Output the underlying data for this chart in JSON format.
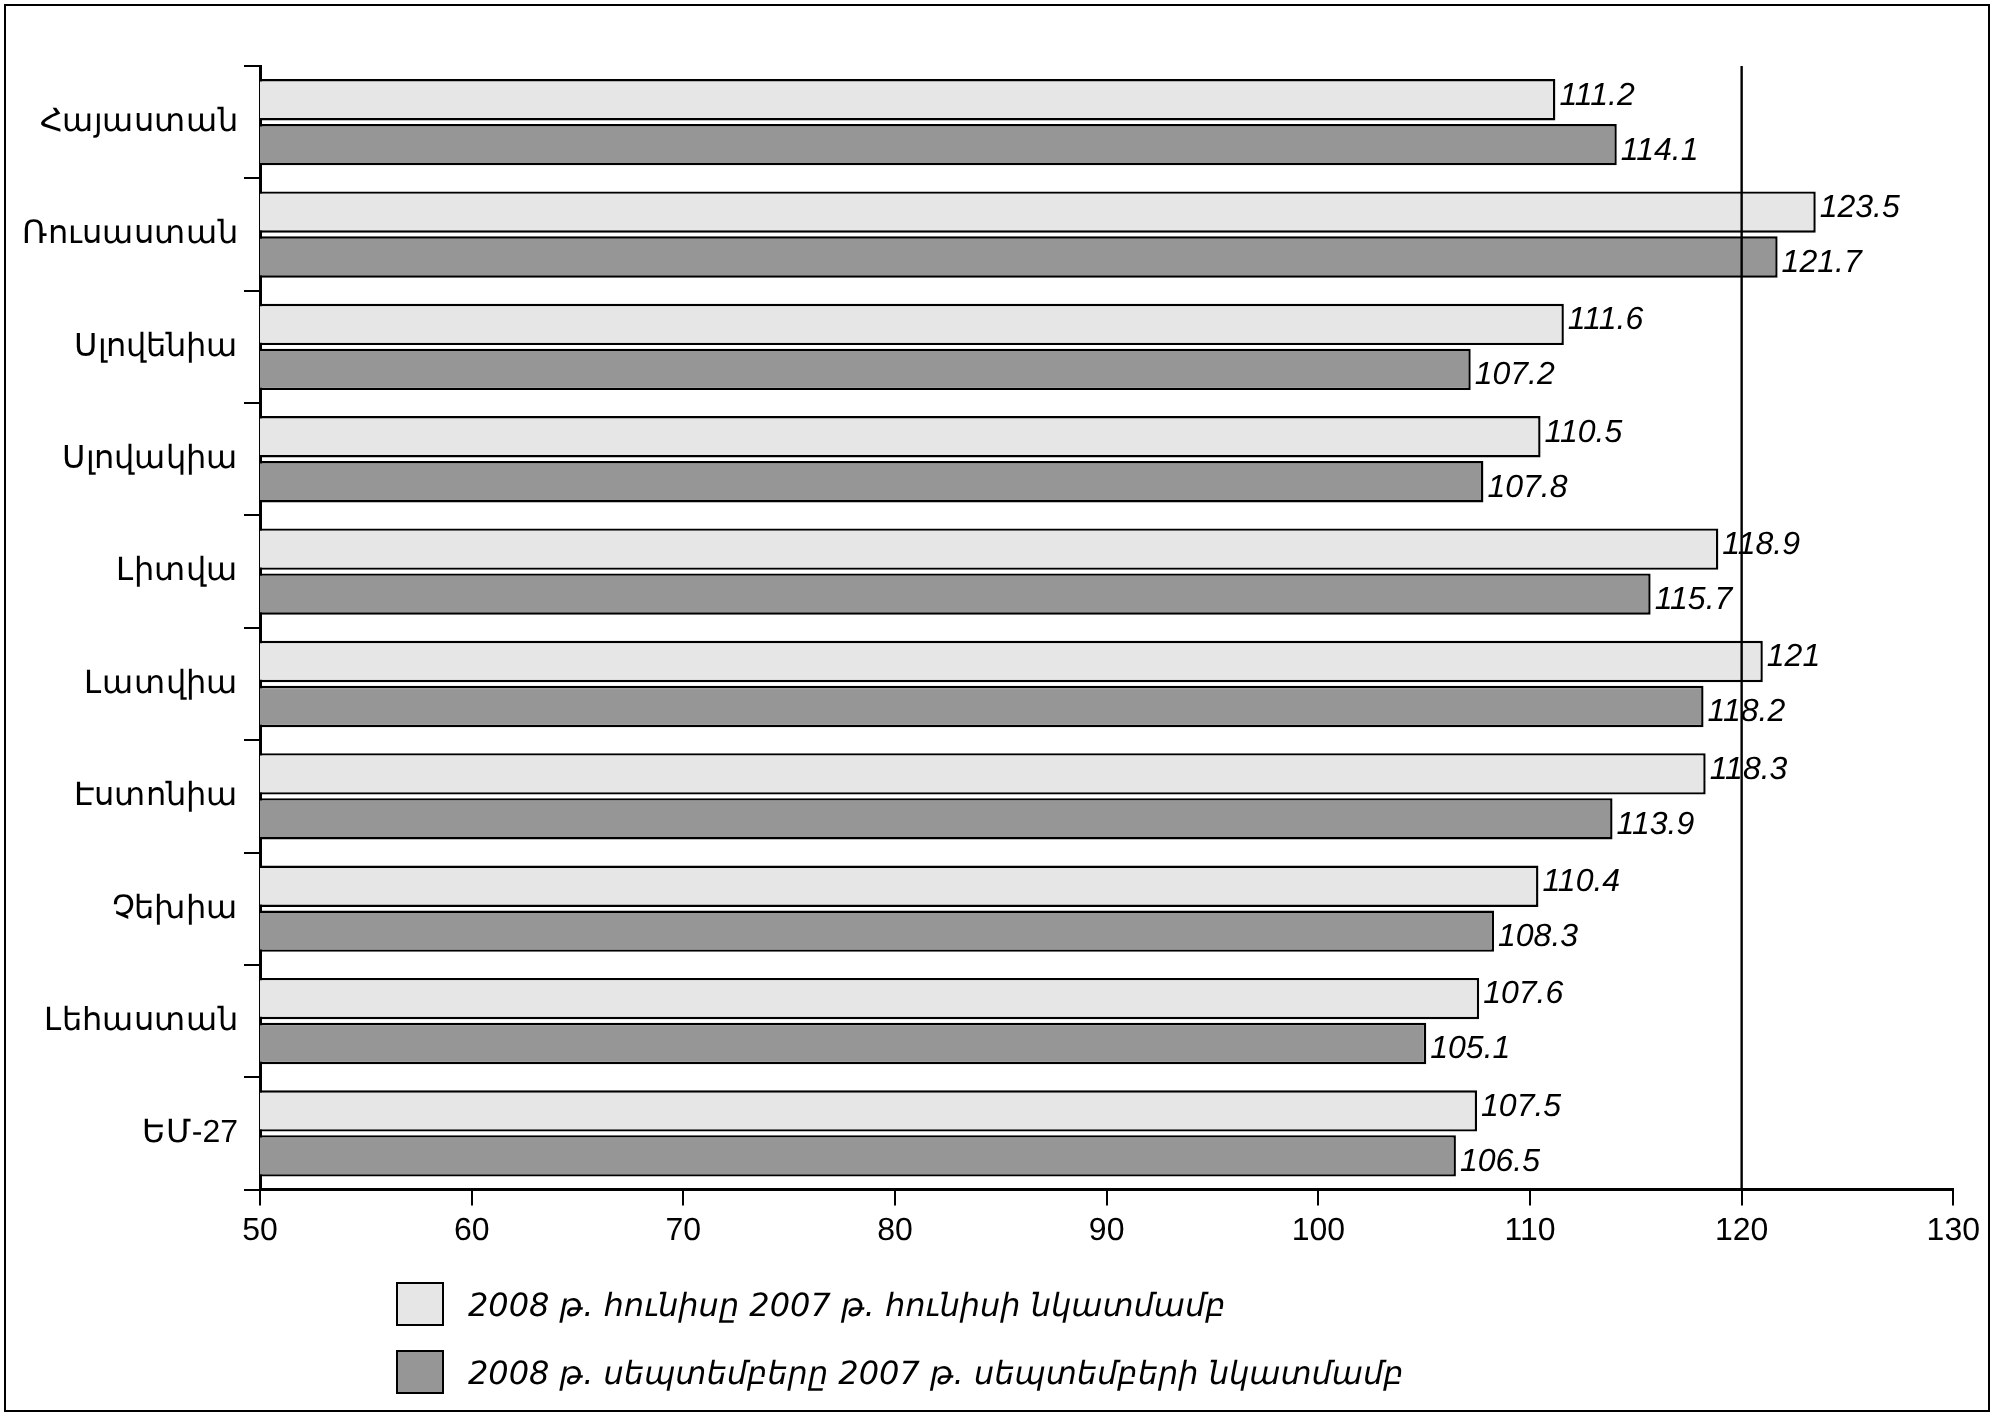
{
  "chart_data": {
    "type": "bar",
    "orientation": "horizontal",
    "categories": [
      "Հայաստան",
      "Ռուսաստան",
      "Սլովենիա",
      "Սլովակիա",
      "Լիտվա",
      "Լատվիա",
      "Էստոնիա",
      "Չեխիա",
      "Լեհաստան",
      "ԵՄ-27"
    ],
    "series": [
      {
        "name": "2008 թ. հունիսը 2007 թ. հունիսի նկատմամբ",
        "color": "#e6e6e6",
        "values": [
          111.2,
          123.5,
          111.6,
          110.5,
          118.9,
          121,
          118.3,
          110.4,
          107.6,
          107.5
        ]
      },
      {
        "name": "2008 թ. սեպտեմբերը 2007 թ. սեպտեմբերի նկատմամբ",
        "color": "#969696",
        "values": [
          114.1,
          121.7,
          107.2,
          107.8,
          115.7,
          118.2,
          113.9,
          108.3,
          105.1,
          106.5
        ]
      }
    ],
    "xlim": [
      50,
      130
    ],
    "xticks": [
      50,
      60,
      70,
      80,
      90,
      100,
      110,
      120,
      130
    ],
    "ref_lines": [
      {
        "axis": "x",
        "value": 120,
        "color": "#000000"
      }
    ],
    "data_labels": true,
    "grid": false,
    "legend": "bottom"
  }
}
